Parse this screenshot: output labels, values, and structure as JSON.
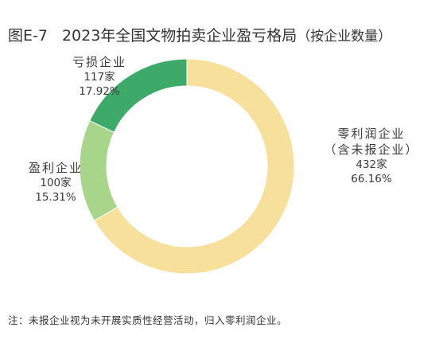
{
  "title": {
    "figure_no": "图E-7",
    "main": "2023年全国文物拍卖企业盈亏格局",
    "paren": "（按企业数量）"
  },
  "chart_data": {
    "type": "pie",
    "title": "2023年全国文物拍卖企业盈亏格局（按企业数量）",
    "slices": [
      {
        "label": "零利润企业",
        "sublabel": "（含未报企业）",
        "count": "432家",
        "percent": "66.16%",
        "value": 66.16,
        "color": "#f7df9c"
      },
      {
        "label": "盈利企业",
        "count": "100家",
        "percent": "15.31%",
        "value": 15.31,
        "color": "#a7d58a"
      },
      {
        "label": "亏损企业",
        "count": "117家",
        "percent": "17.92%",
        "value": 17.92,
        "color": "#3daa6a"
      }
    ],
    "donut": true
  },
  "note": "注：未报企业视为未开展实质性经营活动，归入零利润企业。"
}
